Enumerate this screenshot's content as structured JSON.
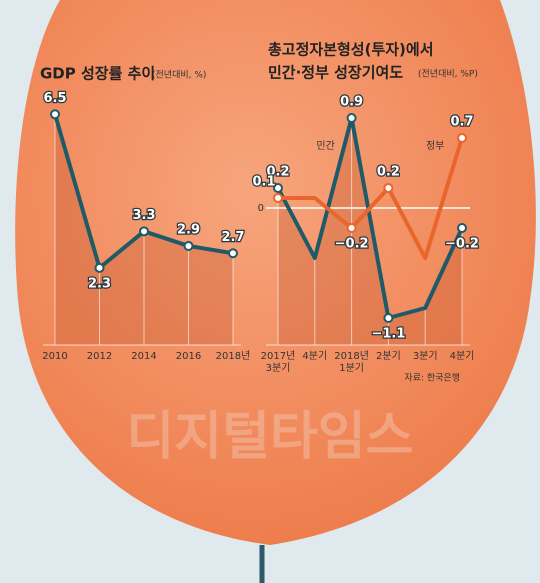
{
  "chart_data": [
    {
      "type": "line",
      "title": "GDP 성장률 추이",
      "subtitle": "(전년대비, %)",
      "categories": [
        "2010",
        "2012",
        "2014",
        "2016",
        "2018년"
      ],
      "series": [
        {
          "name": null,
          "color": "#1f5a68",
          "values": [
            6.5,
            2.3,
            3.3,
            2.9,
            2.7
          ]
        }
      ],
      "ylim": [
        0,
        7
      ]
    },
    {
      "type": "line",
      "title": "총고정자본형성(투자)에서",
      "subtitle": "민간·정부 성장기여도",
      "unit": "(전년대비, %P)",
      "categories": [
        "2017년\n3분기",
        "4분기",
        "2018년\n1분기",
        "2분기",
        "3분기",
        "4분기"
      ],
      "series": [
        {
          "name": "민간",
          "color": "#1f5a68",
          "values": [
            0.2,
            -0.5,
            0.9,
            -1.1,
            -1.0,
            -0.2
          ],
          "value_labels": [
            "0.2",
            null,
            "0.9",
            "−1.1",
            null,
            "−0.2"
          ]
        },
        {
          "name": "정부",
          "color": "#e8662c",
          "values": [
            0.1,
            0.1,
            -0.2,
            0.2,
            -0.5,
            0.7
          ],
          "value_labels": [
            "0.1",
            null,
            "−0.2",
            "0.2",
            null,
            "0.7"
          ]
        }
      ],
      "ylim": [
        -1.5,
        1.0
      ],
      "yticks": [
        0
      ],
      "source": "자료: 한국은행"
    }
  ],
  "watermark": "디지털타임스"
}
